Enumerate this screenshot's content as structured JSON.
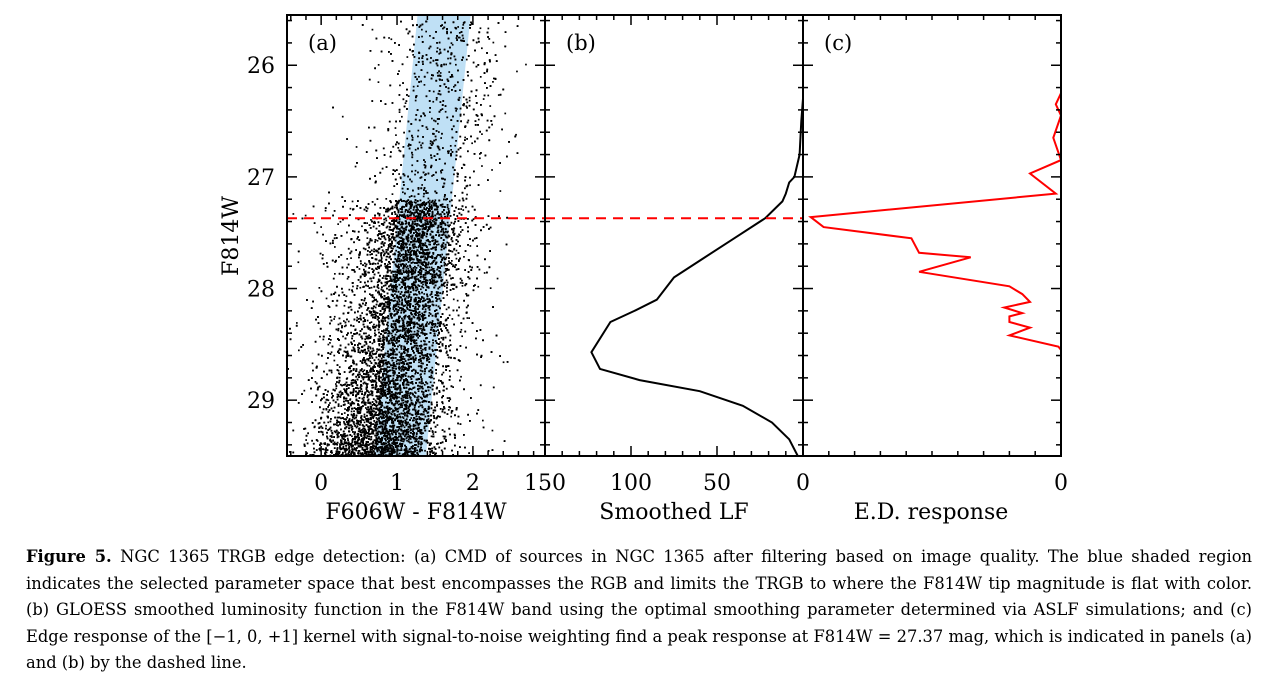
{
  "chart_data": [
    {
      "panel": "(a)",
      "type": "scatter",
      "xlabel": "F606W - F814W",
      "ylabel": "F814W",
      "xlim": [
        -0.45,
        2.95
      ],
      "ylim": [
        29.5,
        25.55
      ],
      "xticks": [
        "0",
        "1",
        "2"
      ],
      "yticks": [
        "26",
        "27",
        "28",
        "29"
      ],
      "selection_band": {
        "color": "#bfe0f5",
        "bottom": {
          "y": 29.5,
          "x": [
            0.7,
            1.38
          ]
        },
        "top": {
          "y": 25.55,
          "x": [
            1.27,
            1.97
          ]
        }
      },
      "trgb": 27.37,
      "point_color": "#000000",
      "n_points": 16000
    },
    {
      "panel": "(b)",
      "type": "line",
      "xlabel": "Smoothed LF",
      "ylabel": "",
      "xlim": [
        150,
        0
      ],
      "ylim": [
        29.5,
        25.55
      ],
      "xticks": [
        "150",
        "100",
        "50",
        "0"
      ],
      "series": [
        {
          "color": "#000000",
          "x": [
            0,
            1,
            2,
            5,
            8,
            10,
            12,
            16,
            22,
            40,
            60,
            75,
            85,
            98,
            112,
            123,
            118,
            95,
            60,
            35,
            18,
            8,
            3
          ],
          "y": [
            26.3,
            26.5,
            26.8,
            27.0,
            27.05,
            27.15,
            27.22,
            27.28,
            27.37,
            27.55,
            27.75,
            27.9,
            28.1,
            28.2,
            28.3,
            28.57,
            28.72,
            28.82,
            28.92,
            29.05,
            29.2,
            29.35,
            29.5
          ]
        }
      ],
      "trgb": 27.37
    },
    {
      "panel": "(c)",
      "type": "line",
      "xlabel": "E.D. response",
      "ylabel": "",
      "xlim": [
        1.0,
        0
      ],
      "ylim": [
        29.5,
        25.55
      ],
      "xticks": [
        "0"
      ],
      "series": [
        {
          "color": "#ff0000",
          "x": [
            0,
            0,
            0.02,
            0,
            0.03,
            0,
            0.12,
            0.02,
            0.97,
            0.92,
            0.58,
            0.55,
            0.35,
            0.55,
            0.2,
            0.15,
            0.12,
            0.22,
            0.15,
            0.2,
            0.2,
            0.12,
            0.2,
            0.01,
            0
          ],
          "y": [
            25.9,
            26.25,
            26.35,
            26.45,
            26.65,
            26.85,
            26.97,
            27.15,
            27.36,
            27.45,
            27.55,
            27.68,
            27.72,
            27.85,
            27.98,
            28.05,
            28.12,
            28.17,
            28.22,
            28.25,
            28.3,
            28.35,
            28.42,
            28.52,
            28.55
          ]
        }
      ],
      "trgb": 27.37
    }
  ],
  "caption": {
    "label": "Figure 5.",
    "text": "NGC 1365 TRGB edge detection: (a) CMD of sources in NGC 1365 after filtering based on image quality. The blue shaded region indicates the selected parameter space that best encompasses the RGB and limits the TRGB to where the F814W tip magnitude is flat with color. (b) GLOESS smoothed luminosity function in the F814W band using the optimal smoothing parameter determined via ASLF simulations; and (c) Edge response of the [−1, 0, +1] kernel with signal-to-noise weighting find a peak response at F814W = 27.37 mag, which is indicated in panels (a) and (b) by the dashed line."
  }
}
